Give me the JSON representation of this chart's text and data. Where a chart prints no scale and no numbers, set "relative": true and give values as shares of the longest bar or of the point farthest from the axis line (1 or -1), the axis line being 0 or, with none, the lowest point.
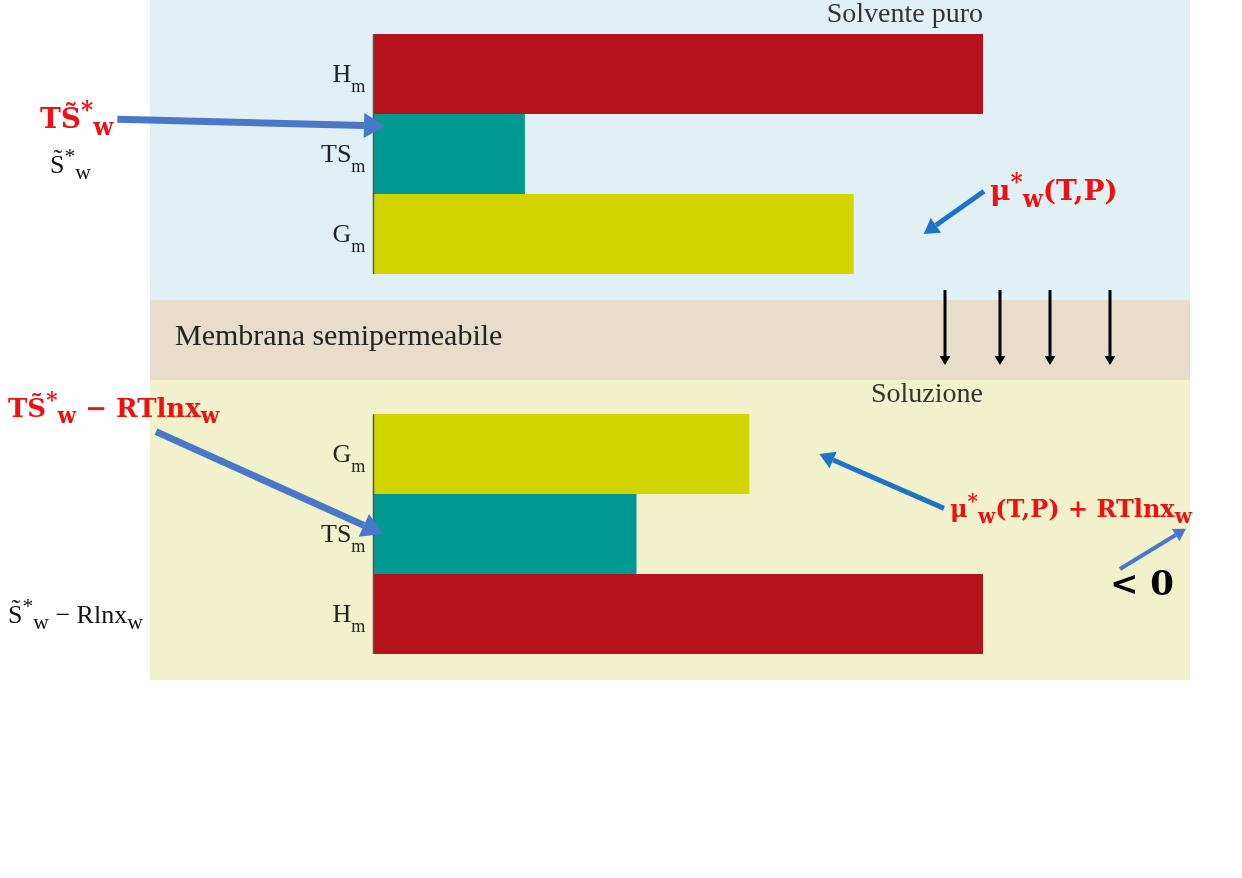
{
  "chart_data": [
    {
      "type": "bar",
      "orientation": "horizontal",
      "relative": true,
      "title": "Solvente puro",
      "categories": [
        "H$_{m}$",
        "TS$_{m}$",
        "G$_{m}$"
      ],
      "values": [
        1,
        0.249,
        0.788
      ],
      "colors": [
        "#b5121b",
        "#009a93",
        "#d0d500"
      ],
      "annotations": [
        "TS̃$^{*}$$_{w}$",
        "S̃$^{*}$$_{w}$",
        "μ$^{*}$$_{w}$(T,P)",
        "Membrana semipermeabile"
      ]
    },
    {
      "type": "bar",
      "orientation": "horizontal",
      "relative": true,
      "title": "Soluzione",
      "categories": [
        "G$_{m}$",
        "TS$_{m}$",
        "H$_{m}$"
      ],
      "values": [
        0.617,
        0.432,
        1
      ],
      "colors": [
        "#d0d500",
        "#009a93",
        "#b5121b"
      ],
      "annotations": [
        "TS̃$^{*}$$_{w}$ − RTlnx$_{w}$",
        "S̃$^{*}$$_{w}$ − Rlnx$_{w}$",
        "μ$^{*}$$_{w}$(T,P) + RTlnx$_{w}$",
        "< 0"
      ]
    }
  ]
}
